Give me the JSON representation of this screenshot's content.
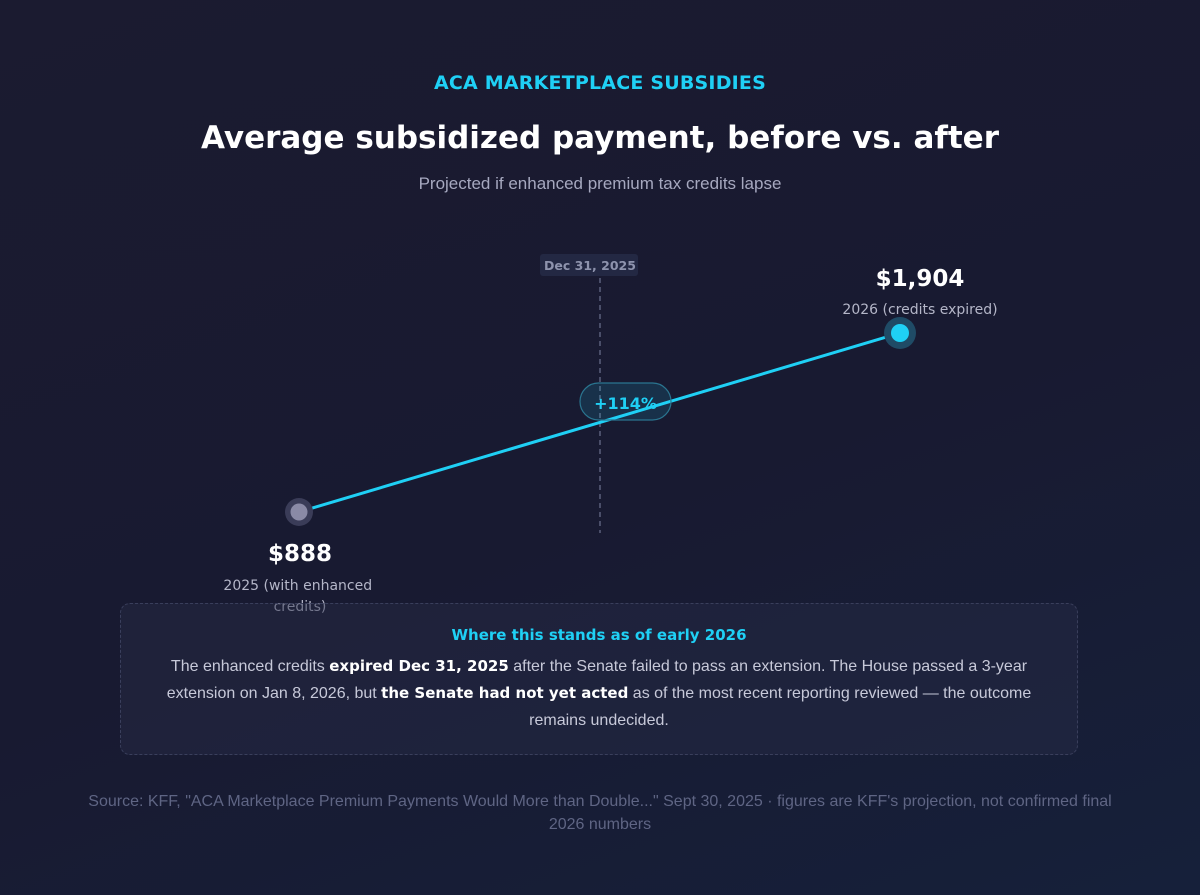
{
  "header": {
    "eyebrow": "ACA MARKETPLACE SUBSIDIES",
    "title": "Average subsidized payment, before vs. after",
    "subtitle": "Projected if enhanced premium tax credits lapse"
  },
  "chart_data": {
    "type": "line",
    "title": "Average subsidized payment, before vs. after",
    "subtitle": "Projected if enhanced premium tax credits lapse",
    "unit": "$",
    "points": [
      {
        "label": "2025 (with enhanced credits)",
        "value": 888,
        "value_label": "$888"
      },
      {
        "label": "2026 (credits expired)",
        "value": 1904,
        "value_label": "$1,904"
      }
    ],
    "change_label": "+114%",
    "marker": {
      "label": "Dec 31, 2025"
    },
    "colors": {
      "line": "#1fd0f5",
      "before_point": "#8a8aa6",
      "after_point": "#1fd0f5"
    }
  },
  "note": {
    "title": "Where this stands as of early 2026",
    "part1": "The enhanced credits ",
    "bold1": "expired Dec 31, 2025",
    "part2": " after the Senate failed to pass an extension. The House passed a 3-year extension on Jan 8, 2026, but ",
    "bold2": "the Senate had not yet acted",
    "part3": " as of the most recent reporting reviewed — the outcome remains undecided."
  },
  "source": "Source: KFF, \"ACA Marketplace Premium Payments Would More than Double...\" Sept 30, 2025 · figures are KFF's projection, not confirmed final 2026 numbers"
}
